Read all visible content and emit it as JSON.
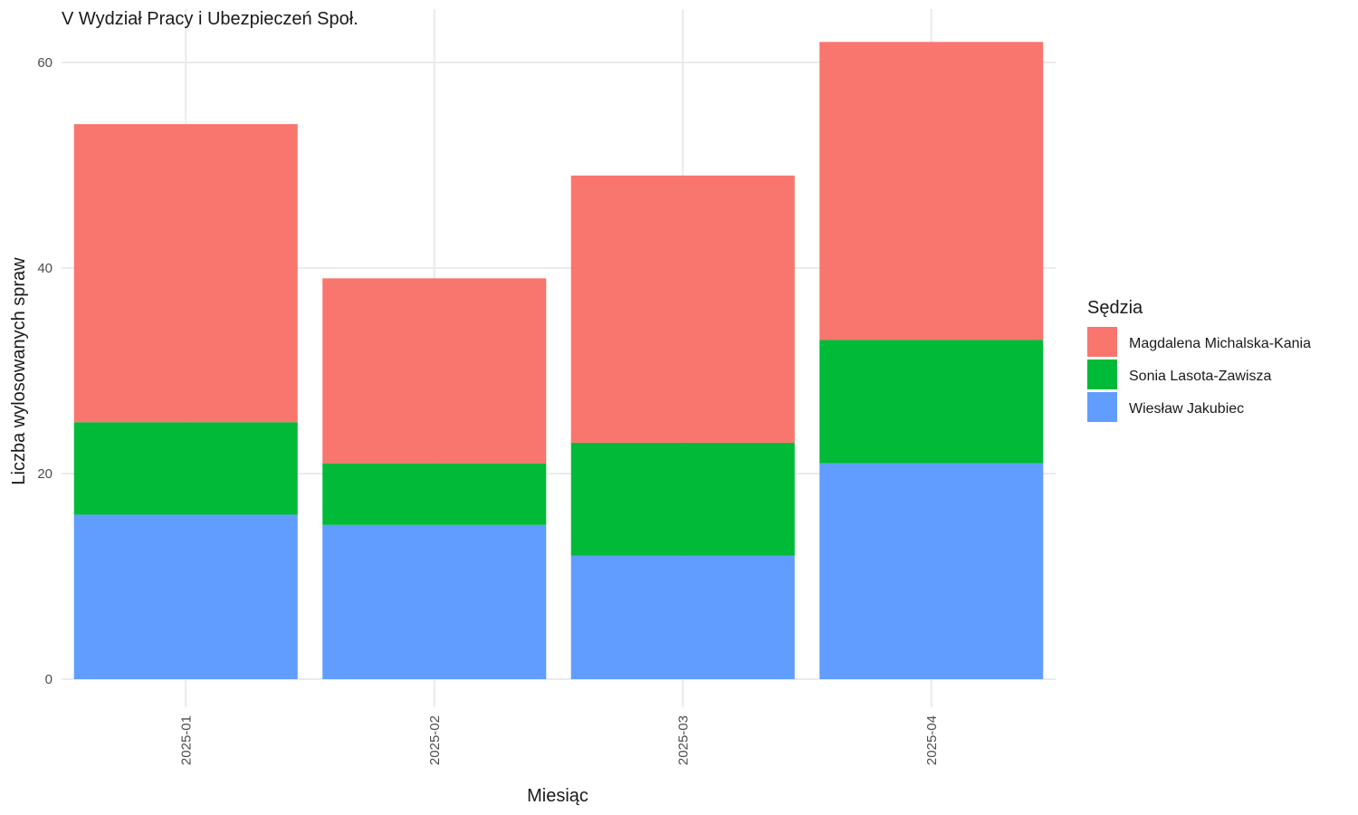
{
  "chart_data": {
    "type": "bar",
    "stacked": true,
    "title": "V Wydział Pracy i Ubezpieczeń Społ.",
    "xlabel": "Miesiąc",
    "ylabel": "Liczba wylosowanych spraw",
    "categories": [
      "2025-01",
      "2025-02",
      "2025-03",
      "2025-04"
    ],
    "ylim": [
      0,
      62
    ],
    "yticks": [
      0,
      20,
      40,
      60
    ],
    "legend": {
      "title": "Sędzia",
      "position": "right"
    },
    "series": [
      {
        "name": "Wiesław Jakubiec",
        "color": "#619CFF",
        "values": [
          16,
          15,
          12,
          21
        ]
      },
      {
        "name": "Sonia Lasota-Zawisza",
        "color": "#00BA38",
        "values": [
          9,
          6,
          11,
          12
        ]
      },
      {
        "name": "Magdalena Michalska-Kania",
        "color": "#F8766D",
        "values": [
          29,
          18,
          26,
          29
        ]
      }
    ],
    "legend_order": [
      "Magdalena Michalska-Kania",
      "Sonia Lasota-Zawisza",
      "Wiesław Jakubiec"
    ],
    "grid": true
  }
}
